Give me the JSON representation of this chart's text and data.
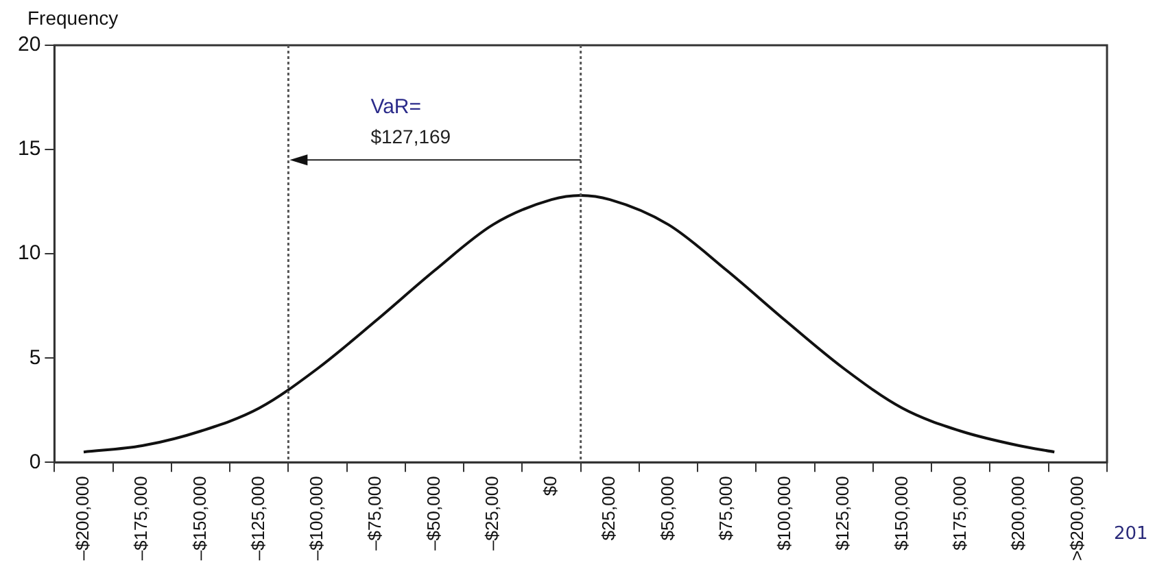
{
  "chart_data": {
    "type": "line",
    "ylabel": "Frequency",
    "x": [
      -200000,
      -175000,
      -150000,
      -125000,
      -100000,
      -75000,
      -50000,
      -25000,
      0,
      12500,
      25000,
      50000,
      75000,
      100000,
      125000,
      150000,
      175000,
      200000,
      215000
    ],
    "series": [
      {
        "color": "#111111",
        "values": [
          0.5,
          0.8,
          1.5,
          2.6,
          4.5,
          6.8,
          9.2,
          11.4,
          12.6,
          12.8,
          12.6,
          11.4,
          9.2,
          6.8,
          4.5,
          2.6,
          1.5,
          0.8,
          0.5
        ]
      }
    ],
    "xlim": [
      -212500,
      237500
    ],
    "xticks": [
      {
        "value": -212500,
        "label": null
      },
      {
        "value": -200000,
        "label": "–$200,000"
      },
      {
        "value": -187500,
        "label": null
      },
      {
        "value": -175000,
        "label": "–$175,000"
      },
      {
        "value": -162500,
        "label": null
      },
      {
        "value": -150000,
        "label": "–$150,000"
      },
      {
        "value": -137500,
        "label": null
      },
      {
        "value": -125000,
        "label": "–$125,000"
      },
      {
        "value": -112500,
        "label": null
      },
      {
        "value": -100000,
        "label": "–$100,000"
      },
      {
        "value": -87500,
        "label": null
      },
      {
        "value": -75000,
        "label": "–$75,000"
      },
      {
        "value": -62500,
        "label": null
      },
      {
        "value": -50000,
        "label": "–$50,000"
      },
      {
        "value": -37500,
        "label": null
      },
      {
        "value": -25000,
        "label": "–$25,000"
      },
      {
        "value": -12500,
        "label": null
      },
      {
        "value": 0,
        "label": "$0"
      },
      {
        "value": 12500,
        "label": null
      },
      {
        "value": 25000,
        "label": "$25,000"
      },
      {
        "value": 37500,
        "label": null
      },
      {
        "value": 50000,
        "label": "$50,000"
      },
      {
        "value": 62500,
        "label": null
      },
      {
        "value": 75000,
        "label": "$75,000"
      },
      {
        "value": 87500,
        "label": null
      },
      {
        "value": 100000,
        "label": "$100,000"
      },
      {
        "value": 112500,
        "label": null
      },
      {
        "value": 125000,
        "label": "$125,000"
      },
      {
        "value": 137500,
        "label": null
      },
      {
        "value": 150000,
        "label": "$150,000"
      },
      {
        "value": 162500,
        "label": null
      },
      {
        "value": 175000,
        "label": "$175,000"
      },
      {
        "value": 187500,
        "label": null
      },
      {
        "value": 200000,
        "label": "$200,000"
      },
      {
        "value": 212500,
        "label": null
      },
      {
        "value": 225000,
        "label": ">$200,000"
      },
      {
        "value": 237500,
        "label": null
      }
    ],
    "ylim": [
      0,
      20
    ],
    "yticks": [
      0,
      5,
      10,
      15,
      20
    ],
    "grid": false,
    "legend": false,
    "marker": "none",
    "line_style": "solid",
    "ref_lines": [
      {
        "axis": "x",
        "value": -112500,
        "line_style": "dotted",
        "color": "#555555"
      },
      {
        "axis": "x",
        "value": 12500,
        "line_style": "dotted",
        "color": "#555555"
      }
    ],
    "annotations": [
      "VaR=",
      "$127,169",
      "201"
    ]
  }
}
